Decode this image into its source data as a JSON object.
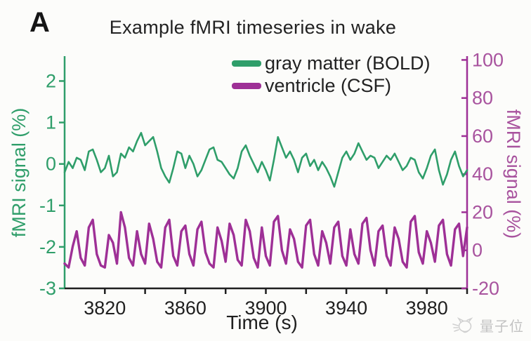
{
  "panel_label": "A",
  "title": "Example fMRI timeseries in wake",
  "watermark": {
    "text": "量子位"
  },
  "colors": {
    "bold_green": "#2f9e6a",
    "csf_purple": "#9e3096",
    "right_label": "#a8539e",
    "axis_black": "#1f1f1f",
    "watermark_gray": "#c2c2c2",
    "background": "#fcfcfa"
  },
  "legend": [
    {
      "label": "gray matter (BOLD)",
      "color_key": "bold_green"
    },
    {
      "label": "ventricle (CSF)",
      "color_key": "csf_purple"
    }
  ],
  "chart_data": {
    "type": "line",
    "title": "Example fMRI timeseries in wake",
    "xlabel": "Time (s)",
    "grid": false,
    "legend_position": "top-right-inside",
    "xlim": [
      3800,
      4000
    ],
    "x_start": 3800,
    "x_step": 2,
    "x_ticks_minor": [
      3820,
      3840,
      3860,
      3880,
      3900,
      3920,
      3940,
      3960,
      3980,
      4000
    ],
    "x_ticks_labeled": [
      3820,
      3860,
      3900,
      3940,
      3980
    ],
    "left_axis": {
      "label": "fMRI signal (%)",
      "ylim": [
        -3,
        2.6
      ],
      "ticks": [
        2,
        1,
        0,
        -1,
        -2,
        -3
      ]
    },
    "right_axis": {
      "label": "fMRI signal (%)",
      "ylim": [
        -20,
        102
      ],
      "ticks": [
        100,
        80,
        60,
        40,
        20,
        0,
        -20
      ]
    },
    "series": [
      {
        "name": "gray matter (BOLD)",
        "axis": "left",
        "color": "#2f9e6a",
        "stroke_width": 2.6,
        "values": [
          -0.2,
          0.05,
          -0.1,
          0.15,
          0.1,
          -0.15,
          0.3,
          0.35,
          0.1,
          -0.2,
          -0.1,
          0.2,
          -0.3,
          -0.2,
          0.25,
          0.15,
          0.4,
          0.3,
          0.55,
          0.75,
          0.45,
          0.55,
          0.65,
          0.3,
          -0.1,
          -0.3,
          -0.45,
          -0.1,
          0.3,
          0.25,
          -0.1,
          0.2,
          0.0,
          -0.3,
          -0.15,
          0.1,
          0.35,
          0.4,
          0.1,
          0.05,
          -0.1,
          -0.25,
          -0.35,
          -0.1,
          0.3,
          0.45,
          0.2,
          0.0,
          -0.2,
          0.05,
          -0.15,
          -0.4,
          0.1,
          0.65,
          0.4,
          0.15,
          0.3,
          0.1,
          -0.2,
          0.15,
          0.25,
          -0.05,
          0.1,
          -0.15,
          0.05,
          -0.1,
          -0.3,
          -0.55,
          -0.2,
          0.15,
          0.3,
          0.1,
          0.25,
          0.5,
          0.3,
          0.1,
          0.2,
          0.15,
          -0.1,
          0.05,
          0.2,
          0.1,
          0.25,
          0.05,
          -0.15,
          -0.05,
          0.15,
          0.1,
          -0.2,
          -0.35,
          -0.1,
          0.2,
          0.35,
          -0.15,
          -0.5,
          -0.25,
          0.1,
          0.3,
          -0.05,
          -0.3,
          -0.15
        ]
      },
      {
        "name": "ventricle (CSF)",
        "axis": "right",
        "color": "#9e3096",
        "stroke_width": 3.4,
        "values": [
          -7,
          -9,
          2,
          10,
          -4,
          -8,
          12,
          16,
          -2,
          -8,
          -9,
          8,
          4,
          -7,
          20,
          12,
          -4,
          -8,
          10,
          -2,
          -7,
          14,
          6,
          -6,
          -9,
          12,
          16,
          -3,
          -8,
          10,
          13,
          -2,
          -8,
          11,
          15,
          -1,
          -7,
          -9,
          12,
          5,
          -6,
          14,
          8,
          -5,
          -8,
          16,
          10,
          -4,
          -9,
          12,
          -3,
          -8,
          15,
          18,
          0,
          -7,
          11,
          6,
          -6,
          -9,
          13,
          16,
          -2,
          -8,
          10,
          4,
          -7,
          12,
          15,
          -3,
          -8,
          11,
          -2,
          -7,
          14,
          17,
          0,
          -8,
          10,
          13,
          -3,
          -8,
          12,
          6,
          -6,
          -9,
          15,
          18,
          -1,
          -7,
          10,
          4,
          -6,
          13,
          16,
          -2,
          -8,
          11,
          14,
          -3,
          12
        ]
      }
    ]
  }
}
